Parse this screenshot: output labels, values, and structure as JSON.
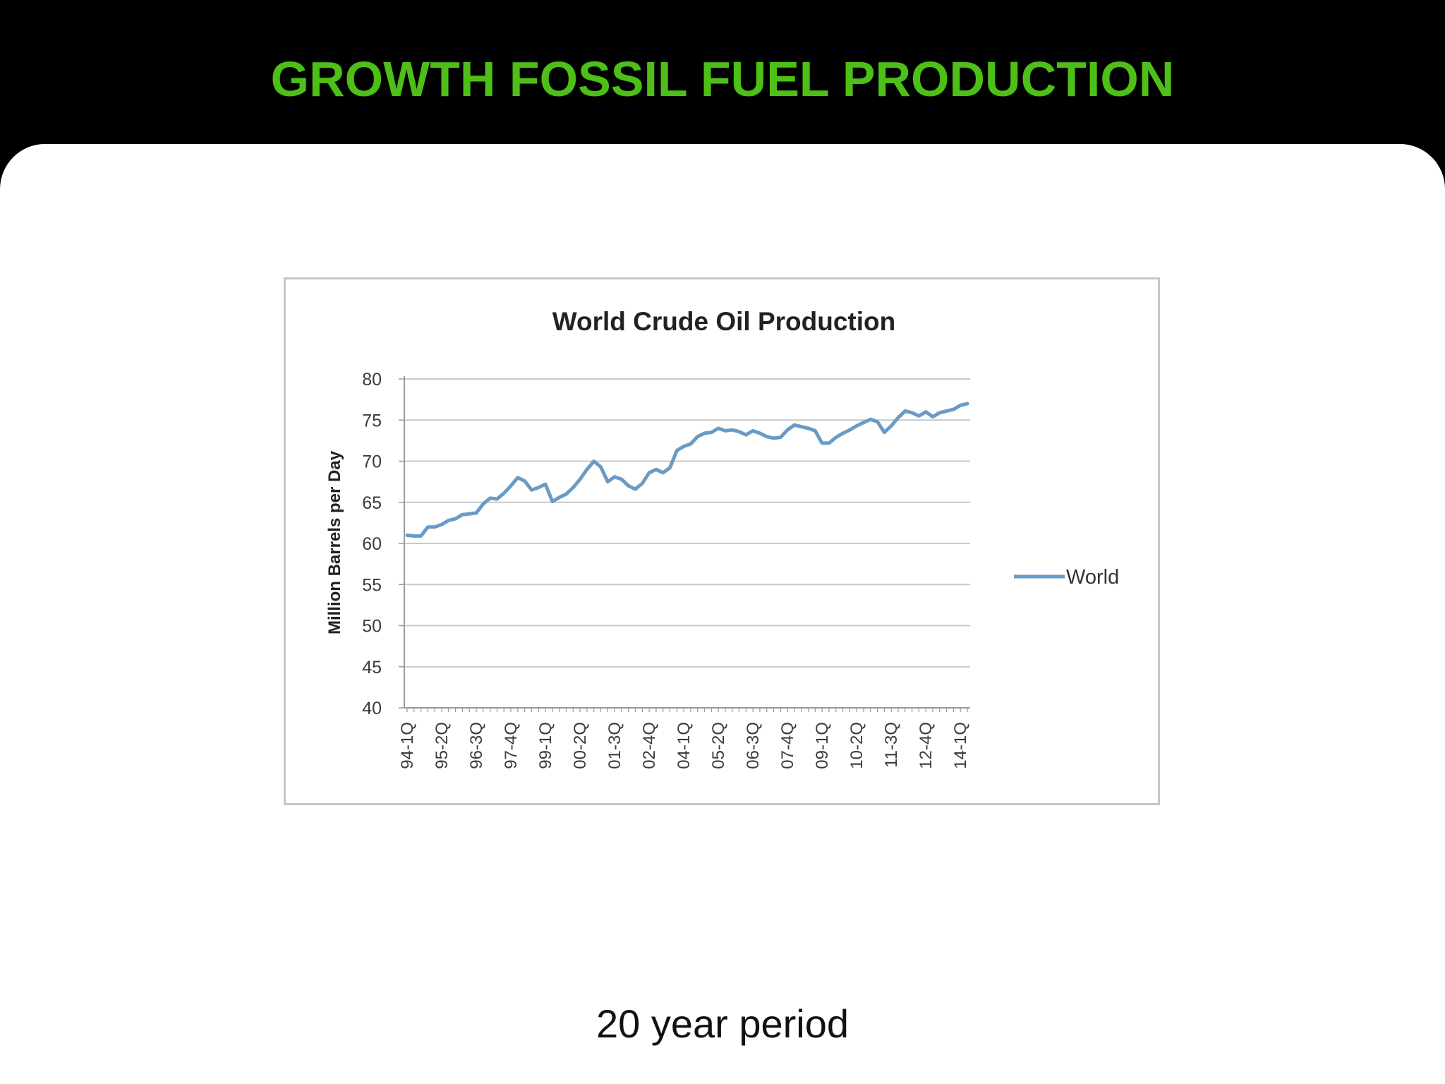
{
  "slide": {
    "title": "GROWTH FOSSIL FUEL PRODUCTION",
    "caption": "20 year period",
    "title_color": "#4dbf17",
    "background": "#000000"
  },
  "chart_data": {
    "type": "line",
    "title": "World Crude Oil Production",
    "ylabel": "Million Barrels per Day",
    "xlabel": "",
    "ylim": [
      40,
      80
    ],
    "yticks": [
      40,
      45,
      50,
      55,
      60,
      65,
      70,
      75,
      80
    ],
    "grid": true,
    "legend_position": "right",
    "x_tick_labels": [
      "94-1Q",
      "95-2Q",
      "96-3Q",
      "97-4Q",
      "99-1Q",
      "00-2Q",
      "01-3Q",
      "02-4Q",
      "04-1Q",
      "05-2Q",
      "06-3Q",
      "07-4Q",
      "09-1Q",
      "10-2Q",
      "11-3Q",
      "12-4Q",
      "14-1Q"
    ],
    "x_tick_label_every": 5,
    "series": [
      {
        "name": "World",
        "color": "#6a9bc4",
        "values": [
          61.0,
          60.9,
          60.9,
          62.0,
          62.0,
          62.3,
          62.8,
          63.0,
          63.5,
          63.6,
          63.7,
          64.8,
          65.5,
          65.4,
          66.1,
          67.0,
          68.0,
          67.6,
          66.5,
          66.8,
          67.2,
          65.1,
          65.6,
          66.0,
          66.8,
          67.8,
          69.0,
          70.0,
          69.3,
          67.5,
          68.1,
          67.8,
          67.0,
          66.6,
          67.3,
          68.6,
          69.0,
          68.6,
          69.2,
          71.3,
          71.8,
          72.1,
          73.0,
          73.4,
          73.5,
          74.0,
          73.7,
          73.8,
          73.6,
          73.2,
          73.7,
          73.4,
          73.0,
          72.8,
          72.9,
          73.8,
          74.4,
          74.2,
          74.0,
          73.7,
          72.2,
          72.2,
          72.9,
          73.4,
          73.8,
          74.3,
          74.7,
          75.1,
          74.8,
          73.5,
          74.3,
          75.3,
          76.1,
          75.9,
          75.5,
          76.0,
          75.4,
          75.9,
          76.1,
          76.3,
          76.8,
          77.0
        ]
      }
    ]
  }
}
